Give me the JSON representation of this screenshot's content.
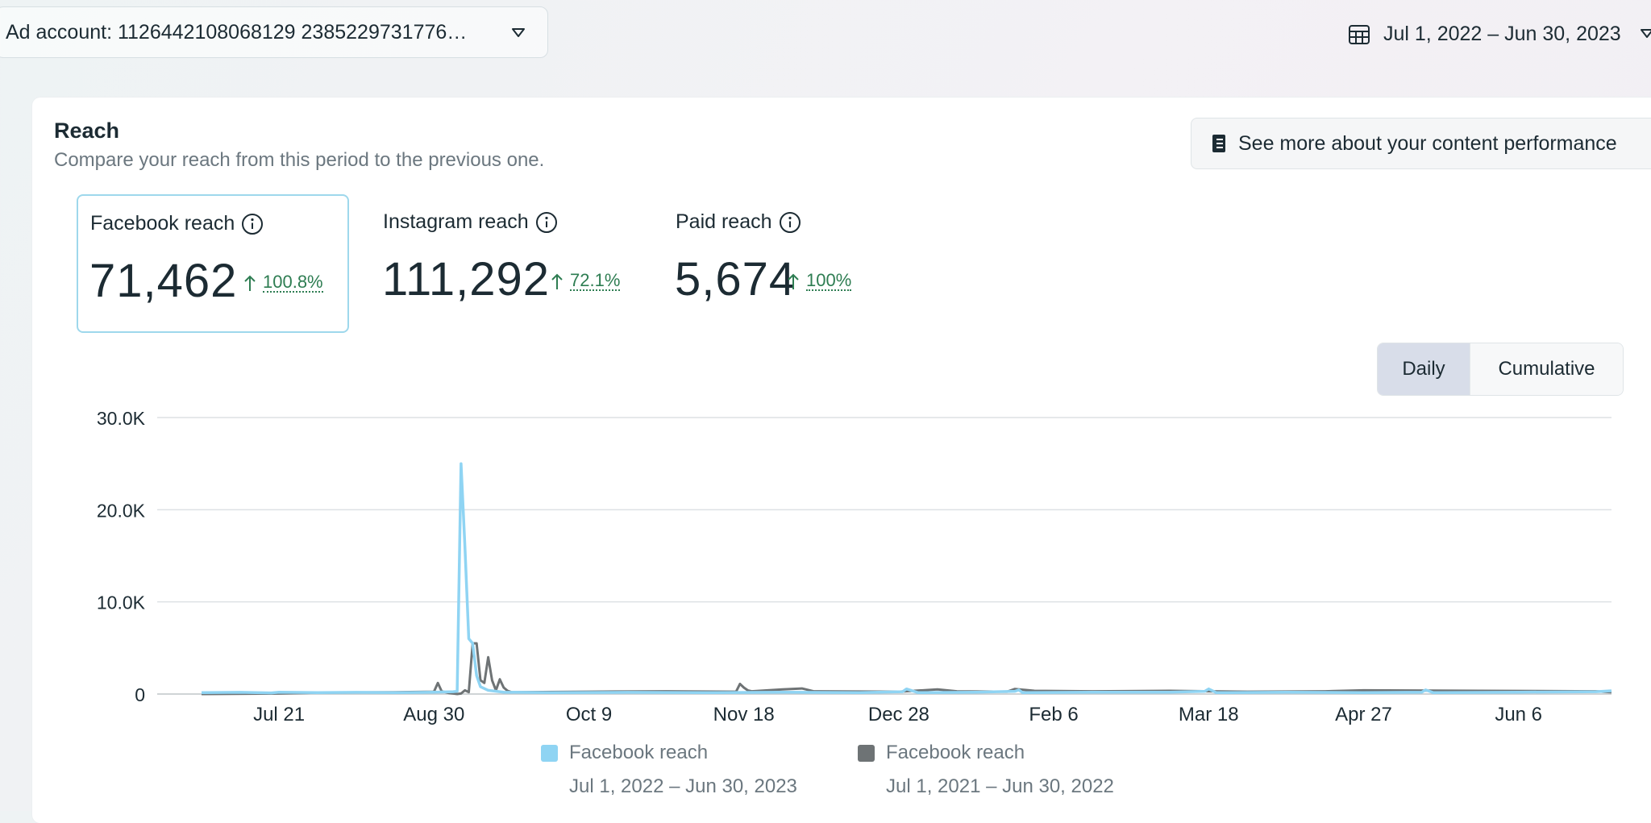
{
  "topbar": {
    "account_label": "Ad account: 1126442108068129 2385229731776…",
    "date_range_label": "Jul 1, 2022 – Jun 30, 2023"
  },
  "icons": {
    "account_caret": "chevron-down-icon",
    "calendar": "calendar-icon",
    "date_caret": "chevron-down-icon",
    "notebook": "notebook-icon",
    "info": "info-icon",
    "arrow_up": "arrow-up-icon"
  },
  "card": {
    "title": "Reach",
    "subtitle": "Compare your reach from this period to the previous one.",
    "perf_button_label": "See more about your content performance"
  },
  "metrics": [
    {
      "title": "Facebook reach",
      "value": "71,462",
      "delta": "100.8%",
      "selected": true
    },
    {
      "title": "Instagram reach",
      "value": "111,292",
      "delta": "72.1%",
      "selected": false
    },
    {
      "title": "Paid reach",
      "value": "5,674",
      "delta": "100%",
      "selected": false
    }
  ],
  "view_toggle": {
    "daily": "Daily",
    "cumulative": "Cumulative",
    "active": "Daily"
  },
  "colors": {
    "current_series": "#8fd4f3",
    "previous_series": "#6e7375",
    "positive_delta": "#2e7d52",
    "selected_border": "#9ed8ec"
  },
  "chart_data": {
    "type": "line",
    "title": "",
    "xlabel": "",
    "ylabel": "",
    "ylim": [
      0,
      30000
    ],
    "yticks": [
      "30.0K",
      "20.0K",
      "10.0K",
      "0"
    ],
    "ytick_values": [
      30000,
      20000,
      10000,
      0
    ],
    "xticks": [
      "Jul 21",
      "Aug 30",
      "Oct 9",
      "Nov 18",
      "Dec 28",
      "Feb 6",
      "Mar 18",
      "Apr 27",
      "Jun 6"
    ],
    "xtick_days": [
      20,
      60,
      100,
      140,
      180,
      220,
      260,
      300,
      340
    ],
    "day_count": 365,
    "grid": true,
    "legend_position": "bottom",
    "series": [
      {
        "name": "Facebook reach",
        "period": "Jul 1, 2022 – Jun 30, 2023",
        "color": "#8fd4f3",
        "points": [
          [
            0,
            150
          ],
          [
            10,
            180
          ],
          [
            18,
            120
          ],
          [
            20,
            200
          ],
          [
            30,
            150
          ],
          [
            40,
            180
          ],
          [
            50,
            150
          ],
          [
            60,
            200
          ],
          [
            65,
            250
          ],
          [
            66,
            300
          ],
          [
            67,
            25000
          ],
          [
            68,
            16000
          ],
          [
            69,
            6000
          ],
          [
            70,
            5500
          ],
          [
            71,
            2000
          ],
          [
            72,
            800
          ],
          [
            74,
            400
          ],
          [
            78,
            200
          ],
          [
            90,
            150
          ],
          [
            110,
            180
          ],
          [
            130,
            150
          ],
          [
            150,
            200
          ],
          [
            170,
            150
          ],
          [
            181,
            250
          ],
          [
            182,
            550
          ],
          [
            185,
            150
          ],
          [
            200,
            200
          ],
          [
            210,
            300
          ],
          [
            211,
            450
          ],
          [
            212,
            150
          ],
          [
            230,
            200
          ],
          [
            250,
            200
          ],
          [
            259,
            300
          ],
          [
            260,
            550
          ],
          [
            262,
            150
          ],
          [
            280,
            200
          ],
          [
            300,
            150
          ],
          [
            315,
            200
          ],
          [
            316,
            450
          ],
          [
            318,
            150
          ],
          [
            340,
            200
          ],
          [
            360,
            250
          ],
          [
            364,
            350
          ]
        ]
      },
      {
        "name": "Facebook reach",
        "period": "Jul 1, 2021 – Jun 30, 2022",
        "color": "#6e7375",
        "points": [
          [
            0,
            0
          ],
          [
            20,
            50
          ],
          [
            30,
            150
          ],
          [
            50,
            200
          ],
          [
            60,
            250
          ],
          [
            61,
            1200
          ],
          [
            62,
            300
          ],
          [
            64,
            100
          ],
          [
            65,
            50
          ],
          [
            66,
            0
          ],
          [
            67,
            50
          ],
          [
            68,
            400
          ],
          [
            69,
            200
          ],
          [
            70,
            5500
          ],
          [
            71,
            5500
          ],
          [
            72,
            1500
          ],
          [
            73,
            1200
          ],
          [
            74,
            4000
          ],
          [
            75,
            1500
          ],
          [
            76,
            400
          ],
          [
            77,
            1600
          ],
          [
            78,
            700
          ],
          [
            79,
            350
          ],
          [
            80,
            200
          ],
          [
            100,
            250
          ],
          [
            120,
            300
          ],
          [
            138,
            250
          ],
          [
            139,
            1100
          ],
          [
            140,
            700
          ],
          [
            141,
            400
          ],
          [
            142,
            300
          ],
          [
            150,
            500
          ],
          [
            155,
            600
          ],
          [
            158,
            300
          ],
          [
            180,
            250
          ],
          [
            190,
            500
          ],
          [
            195,
            300
          ],
          [
            208,
            250
          ],
          [
            210,
            550
          ],
          [
            215,
            350
          ],
          [
            230,
            300
          ],
          [
            250,
            350
          ],
          [
            270,
            250
          ],
          [
            290,
            300
          ],
          [
            300,
            400
          ],
          [
            330,
            350
          ],
          [
            360,
            300
          ],
          [
            364,
            200
          ]
        ]
      }
    ]
  }
}
